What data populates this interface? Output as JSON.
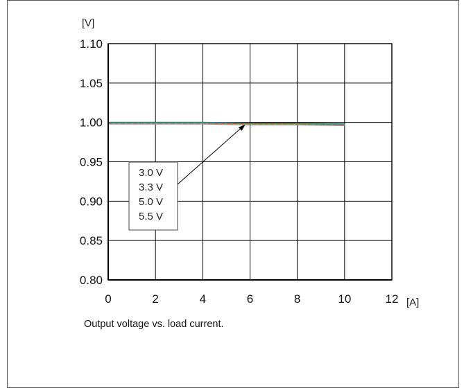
{
  "chart_data": {
    "type": "line",
    "title": "",
    "caption": "Output voltage vs. load current.",
    "xunit": "[A]",
    "yunit": "[V]",
    "xlim": [
      0,
      12
    ],
    "ylim": [
      0.8,
      1.1
    ],
    "xticks": [
      "0",
      "2",
      "4",
      "6",
      "8",
      "10",
      "12"
    ],
    "yticks": [
      "0.80",
      "0.85",
      "0.90",
      "0.95",
      "1.00",
      "1.05",
      "1.10"
    ],
    "grid": true,
    "series": [
      {
        "name": "3.0 V",
        "color": "#2f7f8f",
        "x": [
          0,
          2,
          4,
          6,
          8,
          10
        ],
        "y": [
          0.999,
          0.999,
          0.999,
          0.998,
          0.998,
          0.997
        ]
      },
      {
        "name": "3.3 V",
        "color": "#4a9a4a",
        "x": [
          0,
          2,
          4,
          6,
          8,
          10
        ],
        "y": [
          0.999,
          0.999,
          0.999,
          0.998,
          0.998,
          0.997
        ]
      },
      {
        "name": "5.0 V",
        "color": "#d0453f",
        "x": [
          0,
          2,
          4,
          6,
          8,
          10
        ],
        "y": [
          0.999,
          0.999,
          0.999,
          0.998,
          0.998,
          0.997
        ]
      },
      {
        "name": "5.5 V",
        "color": "#9a9a9a",
        "x": [
          0,
          2,
          4,
          6,
          8,
          10
        ],
        "y": [
          0.999,
          0.999,
          0.999,
          0.998,
          0.998,
          0.997
        ]
      }
    ],
    "legend_entries": [
      "3.0 V",
      "3.3 V",
      "5.0 V",
      "5.5 V"
    ],
    "legend_placement": "left-center"
  }
}
